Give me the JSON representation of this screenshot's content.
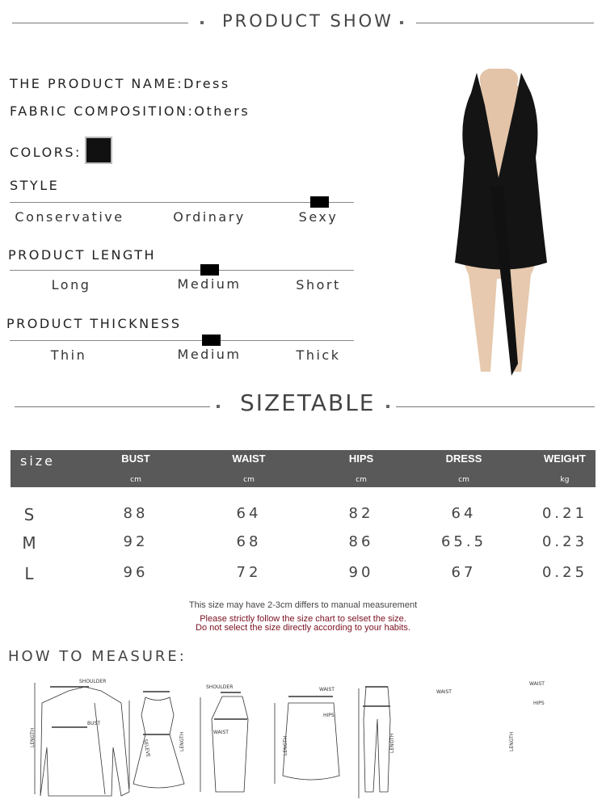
{
  "header": {
    "title": "PRODUCT SHOW"
  },
  "info": {
    "name_label": "THE PRODUCT NAME:",
    "name": "Dress",
    "fabric_label": "FABRIC COMPOSITION:",
    "fabric": "Others",
    "colors_label": "COLORS:",
    "color_swatch": "#111111"
  },
  "scales": [
    {
      "title": "STYLE",
      "options": [
        "Conservative",
        "Ordinary",
        "Sexy"
      ],
      "selected": "Sexy"
    },
    {
      "title": "PRODUCT LENGTH",
      "options": [
        "Long",
        "Medium",
        "Short"
      ],
      "selected": "Medium"
    },
    {
      "title": "PRODUCT THICKNESS",
      "options": [
        "Thin",
        "Medium",
        "Thick"
      ],
      "selected": "Medium"
    }
  ],
  "sizetable": {
    "title": "SIZETABLE",
    "headers": [
      "size",
      "BUST",
      "WAIST",
      "HIPS",
      "DRESS",
      "WEIGHT"
    ],
    "units": [
      "",
      "cm",
      "cm",
      "cm",
      "cm",
      "kg"
    ],
    "rows": [
      [
        "S",
        "88",
        "64",
        "82",
        "64",
        "0.21"
      ],
      [
        "M",
        "92",
        "68",
        "86",
        "65.5",
        "0.23"
      ],
      [
        "L",
        "96",
        "72",
        "90",
        "67",
        "0.25"
      ]
    ],
    "header_color": "#595959",
    "note1": "This size may have 2-3cm differs to manual measurement",
    "note2": "Please strictly follow the size chart to selset the size.",
    "note3": "Do not select the size directly according to your habits.",
    "note_color": "#7a1020"
  },
  "measure": {
    "title": "HOW TO MEASURE:",
    "labels": {
      "shoulder": "SHOULDER",
      "bust": "BUST",
      "length": "LENGTH",
      "sleeve": "SELEVE",
      "waist": "WAIST",
      "hips": "HIPS"
    }
  }
}
